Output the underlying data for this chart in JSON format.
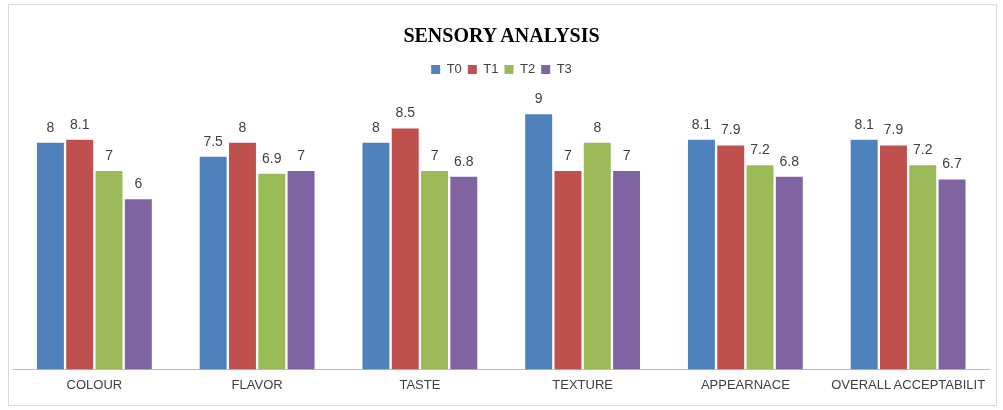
{
  "chart_data": {
    "type": "bar",
    "title": "SENSORY ANALYSIS",
    "categories": [
      "COLOUR",
      "FLAVOR",
      "TASTE",
      "TEXTURE",
      "APPEARNACE",
      "OVERALL ACCEPTABILIT"
    ],
    "series": [
      {
        "name": "T0",
        "color": "#4f81bd",
        "values": [
          8,
          7.5,
          8,
          9,
          8.1,
          8.1
        ]
      },
      {
        "name": "T1",
        "color": "#c0504d",
        "values": [
          8.1,
          8,
          8.5,
          7,
          7.9,
          7.9
        ]
      },
      {
        "name": "T2",
        "color": "#9bbb59",
        "values": [
          7,
          6.9,
          7,
          8,
          7.2,
          7.2
        ]
      },
      {
        "name": "T3",
        "color": "#8064a2",
        "values": [
          6,
          7,
          6.8,
          7,
          6.8,
          6.7
        ]
      }
    ],
    "data_labels": true,
    "legend": "top",
    "grid": false,
    "tick_labels": "x"
  }
}
